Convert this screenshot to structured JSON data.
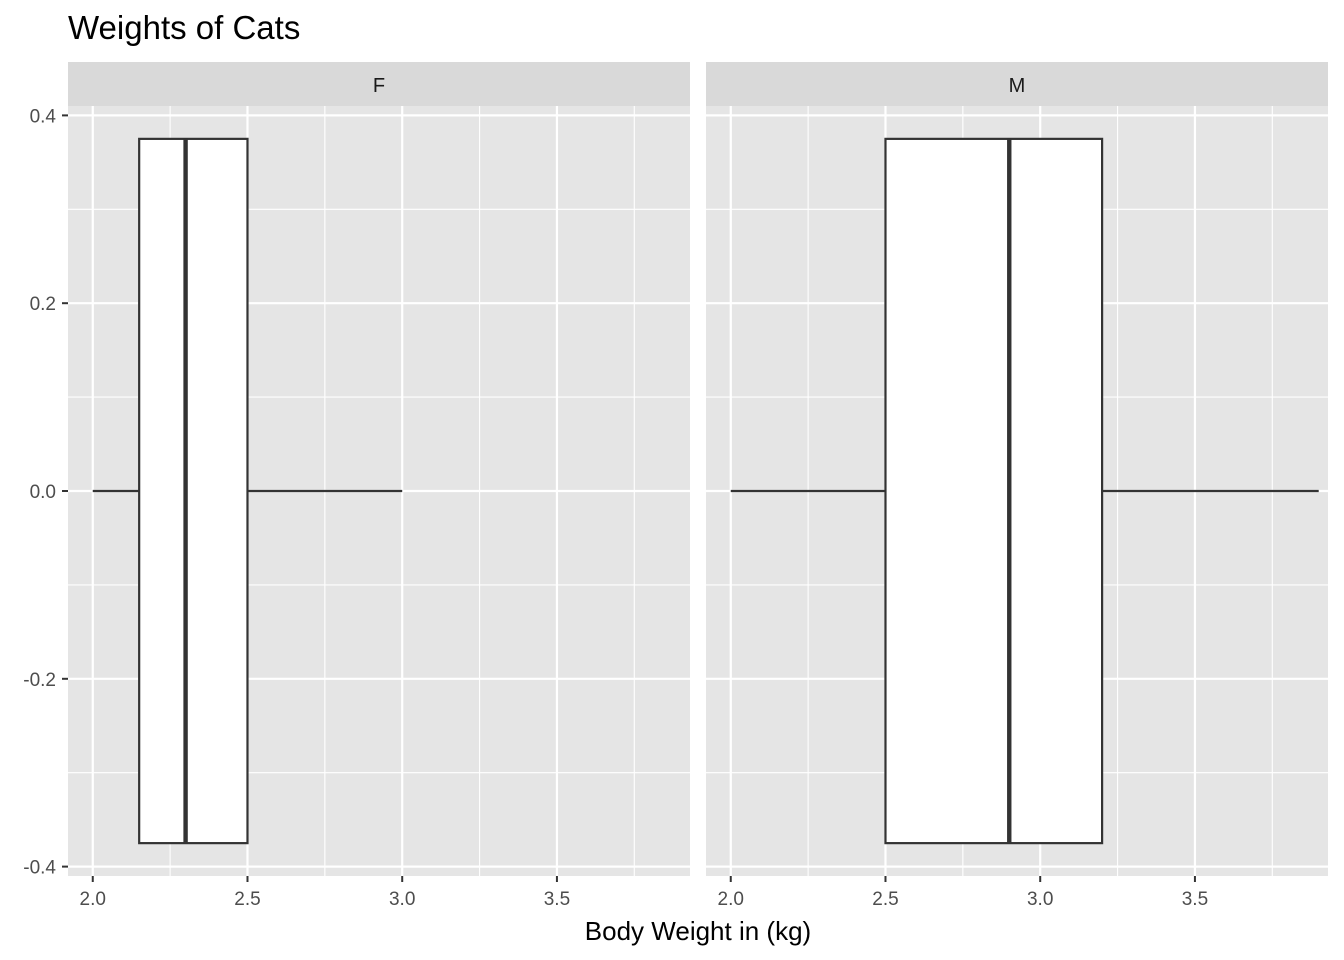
{
  "chart_data": {
    "type": "boxplot",
    "title": "Weights of Cats",
    "xlabel": "Body Weight in (kg)",
    "ylabel": "",
    "xlim": [
      1.92,
      3.93
    ],
    "ylim": [
      -0.41,
      0.41
    ],
    "x_ticks": [
      "2.0",
      "2.5",
      "3.0",
      "3.5"
    ],
    "x_tick_values": [
      2.0,
      2.5,
      3.0,
      3.5
    ],
    "y_ticks": [
      "-0.4",
      "-0.2",
      "0.0",
      "0.2",
      "0.4"
    ],
    "y_tick_values": [
      -0.4,
      -0.2,
      0.0,
      0.2,
      0.4
    ],
    "box_half_height": 0.375,
    "grid": true,
    "legend": "none",
    "facets": [
      {
        "label": "F",
        "whisker_low": 2.0,
        "q1": 2.15,
        "median": 2.3,
        "q3": 2.5,
        "whisker_high": 3.0
      },
      {
        "label": "M",
        "whisker_low": 2.0,
        "q1": 2.5,
        "median": 2.9,
        "q3": 3.2,
        "whisker_high": 3.9
      }
    ],
    "colors": {
      "panel_background": "#e5e5e5",
      "strip_background": "#d9d9d9",
      "grid": "#ffffff",
      "box_fill": "#ffffff",
      "box_line": "#333333"
    }
  }
}
